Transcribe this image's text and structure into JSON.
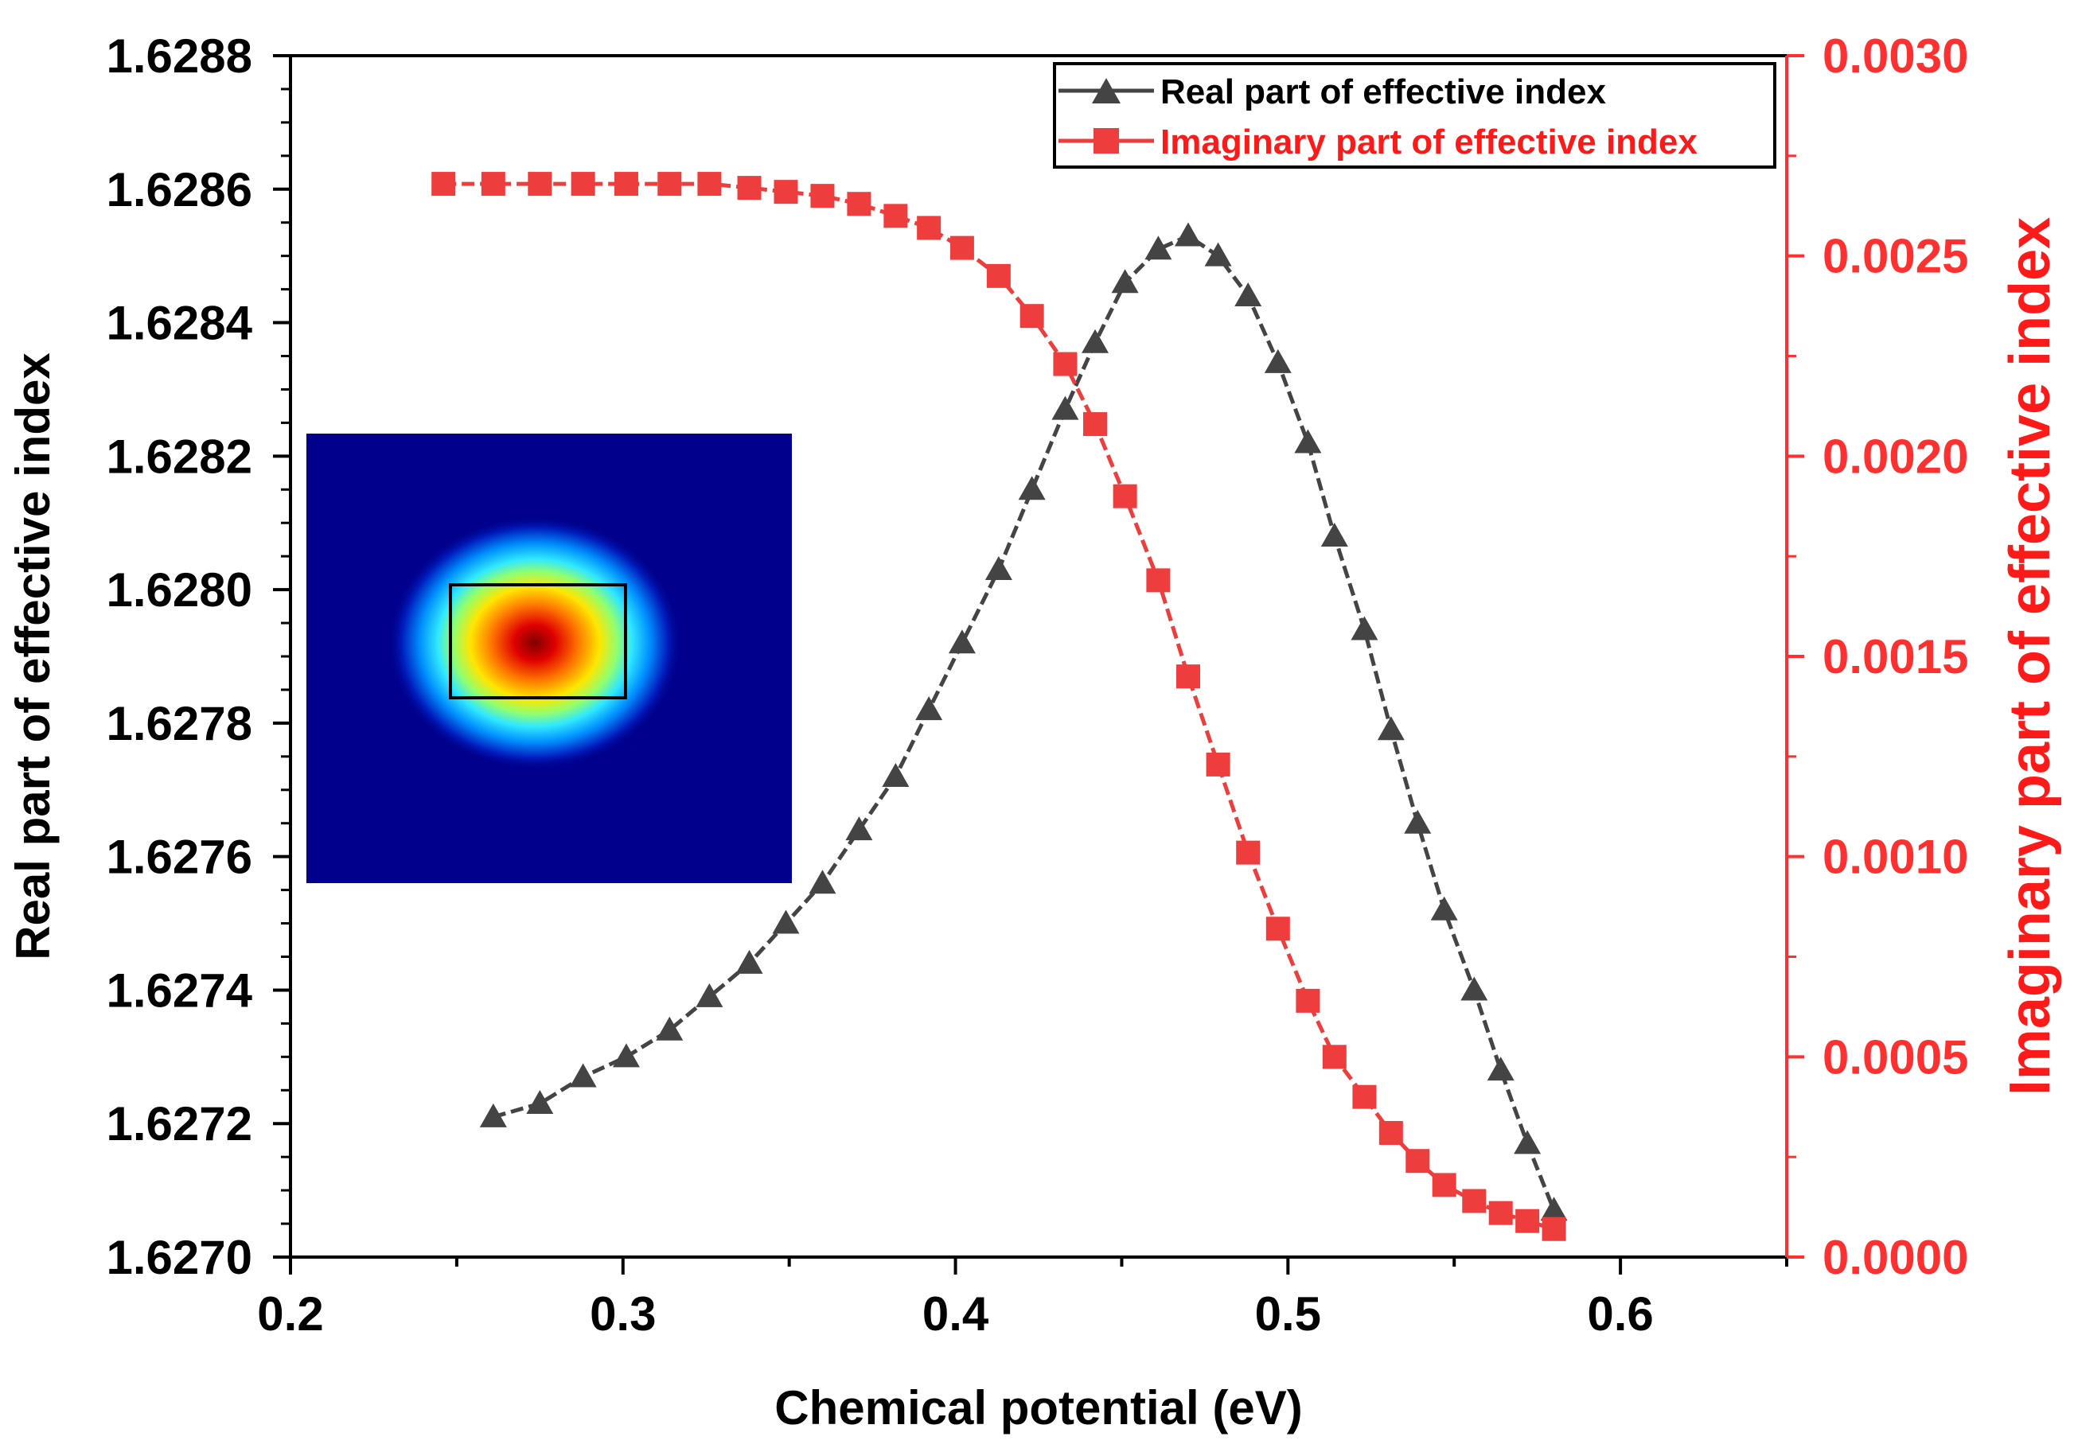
{
  "colors": {
    "real_series": "#444444",
    "imag_series": "#ee3d3d",
    "imag_axis": "#ff3030",
    "frame": "#000000",
    "inset_background": "#00008c"
  },
  "chart_data": {
    "type": "line",
    "xlabel": "Chemical potential (eV)",
    "ylabel_left": "Real part of effective index",
    "ylabel_right": "Imaginary part of effective index",
    "xlim": [
      0.2,
      0.65
    ],
    "ylim_left": [
      1.627,
      1.6288
    ],
    "ylim_right": [
      0.0,
      0.003
    ],
    "x_ticks": [
      "0.2",
      "0.3",
      "0.4",
      "0.5",
      "0.6"
    ],
    "y_left_ticks": [
      "1.6270",
      "1.6272",
      "1.6274",
      "1.6276",
      "1.6278",
      "1.6280",
      "1.6282",
      "1.6284",
      "1.6286",
      "1.6288"
    ],
    "y_right_ticks": [
      "0.0000",
      "0.0005",
      "0.0010",
      "0.0015",
      "0.0020",
      "0.0025",
      "0.0030"
    ],
    "grid": false,
    "legend_position": "top-right",
    "series": [
      {
        "name": "Real part of effective index",
        "axis": "left",
        "marker": "triangle",
        "color": "#444444",
        "x": [
          0.261,
          0.275,
          0.288,
          0.301,
          0.314,
          0.326,
          0.338,
          0.349,
          0.36,
          0.371,
          0.382,
          0.392,
          0.402,
          0.413,
          0.423,
          0.433,
          0.442,
          0.451,
          0.461,
          0.47,
          0.479,
          0.488,
          0.497,
          0.506,
          0.514,
          0.523,
          0.531,
          0.539,
          0.547,
          0.556,
          0.564,
          0.572,
          0.58
        ],
        "y": [
          1.62721,
          1.62723,
          1.62727,
          1.6273,
          1.62734,
          1.62739,
          1.62744,
          1.6275,
          1.62756,
          1.62764,
          1.62772,
          1.62782,
          1.62792,
          1.62803,
          1.62815,
          1.62827,
          1.62837,
          1.62846,
          1.62851,
          1.62853,
          1.6285,
          1.62844,
          1.62834,
          1.62822,
          1.62808,
          1.62794,
          1.62779,
          1.62765,
          1.62752,
          1.6274,
          1.62728,
          1.62717,
          1.62707
        ]
      },
      {
        "name": "Imaginary part of effective index",
        "axis": "right",
        "marker": "square",
        "color": "#ee3d3d",
        "x": [
          0.246,
          0.261,
          0.275,
          0.288,
          0.301,
          0.314,
          0.326,
          0.338,
          0.349,
          0.36,
          0.371,
          0.382,
          0.392,
          0.402,
          0.413,
          0.423,
          0.433,
          0.442,
          0.451,
          0.461,
          0.47,
          0.479,
          0.488,
          0.497,
          0.506,
          0.514,
          0.523,
          0.531,
          0.539,
          0.547,
          0.556,
          0.564,
          0.572,
          0.58
        ],
        "y": [
          0.00268,
          0.00268,
          0.00268,
          0.00268,
          0.00268,
          0.00268,
          0.00268,
          0.00267,
          0.00266,
          0.00265,
          0.00263,
          0.0026,
          0.00257,
          0.00252,
          0.00245,
          0.00235,
          0.00223,
          0.00208,
          0.0019,
          0.00169,
          0.00145,
          0.00123,
          0.00101,
          0.00082,
          0.00064,
          0.0005,
          0.0004,
          0.00031,
          0.00024,
          0.00018,
          0.00014,
          0.00011,
          9e-05,
          7e-05
        ]
      }
    ],
    "inset": {
      "description_free": true,
      "colormap": [
        "#00008c",
        "#0030c8",
        "#00a0ff",
        "#40f0ff",
        "#80ff80",
        "#ffee00",
        "#ff8000",
        "#e00000",
        "#800000"
      ]
    }
  }
}
